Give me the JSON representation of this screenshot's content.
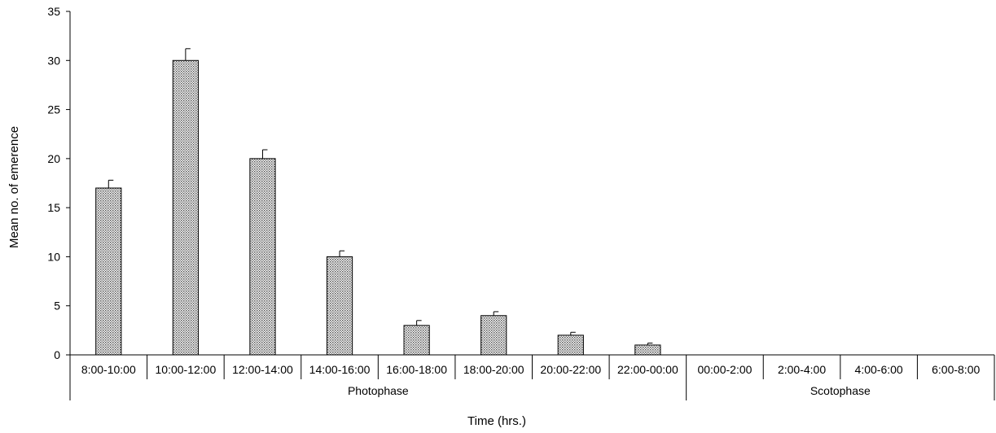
{
  "chart_data": {
    "type": "bar",
    "title": "",
    "xlabel": "Time (hrs.)",
    "ylabel": "Mean no. of emerence",
    "ylim": [
      0,
      35
    ],
    "yticks": [
      0,
      5,
      10,
      15,
      20,
      25,
      30,
      35
    ],
    "categories": [
      "8:00-10:00",
      "10:00-12:00",
      "12:00-14:00",
      "14:00-16:00",
      "16:00-18:00",
      "18:00-20:00",
      "20:00-22:00",
      "22:00-00:00",
      "00:00-2:00",
      "2:00-4:00",
      "4:00-6:00",
      "6:00-8:00"
    ],
    "values": [
      17,
      30,
      20,
      10,
      3,
      4,
      2,
      1,
      0,
      0,
      0,
      0
    ],
    "errors": [
      0.8,
      1.2,
      0.9,
      0.6,
      0.5,
      0.4,
      0.3,
      0.2,
      0,
      0,
      0,
      0
    ],
    "groups": [
      {
        "label": "Photophase",
        "count": 8
      },
      {
        "label": "Scotophase",
        "count": 4
      }
    ],
    "bar_fill": "dotted-gray",
    "grid": false,
    "legend": "none"
  }
}
